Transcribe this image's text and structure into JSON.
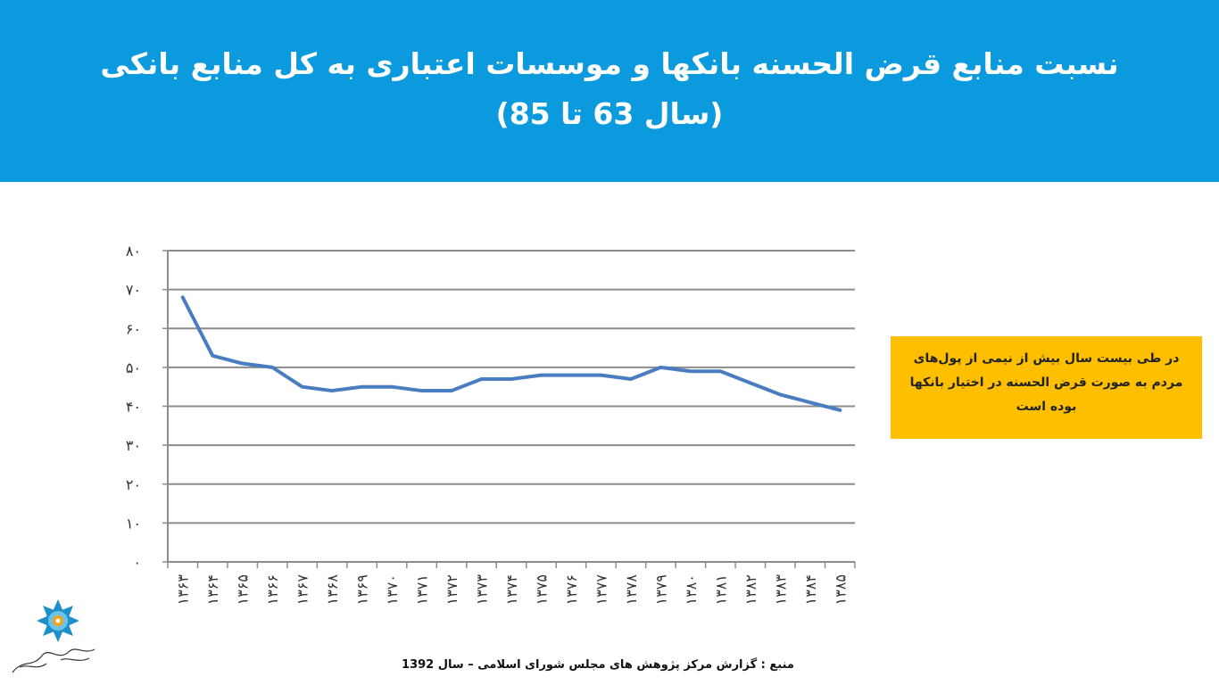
{
  "slide": {
    "title_line1": "نسبت منابع قرض الحسنه بانکها و موسسات اعتباری به کل منابع بانکی",
    "title_line2": "(سال 63 تا 85)",
    "note": "در طی بیست سال بیش از نیمی از پول‌های مردم به صورت قرض الحسنه در اختیار بانکها بوده است",
    "source": "منبع : گزارش مرکز پژوهش های مجلس شورای اسلامی – سال 1392",
    "colors": {
      "header": "#0b9ade",
      "note_bg": "#fdbf00",
      "line": "#4a7cc2",
      "grid": "#8c8c8c"
    },
    "logo_icon": "institute-logo-icon"
  },
  "chart_data": {
    "type": "line",
    "title": "",
    "xlabel": "",
    "ylabel": "",
    "categories": [
      "۱۳۶۳",
      "۱۳۶۴",
      "۱۳۶۵",
      "۱۳۶۶",
      "۱۳۶۷",
      "۱۳۶۸",
      "۱۳۶۹",
      "۱۳۷۰",
      "۱۳۷۱",
      "۱۳۷۲",
      "۱۳۷۳",
      "۱۳۷۴",
      "۱۳۷۵",
      "۱۳۷۶",
      "۱۳۷۷",
      "۱۳۷۸",
      "۱۳۷۹",
      "۱۳۸۰",
      "۱۳۸۱",
      "۱۳۸۲",
      "۱۳۸۳",
      "۱۳۸۴",
      "۱۳۸۵"
    ],
    "values": [
      68,
      53,
      51,
      50,
      45,
      44,
      45,
      45,
      44,
      44,
      47,
      47,
      48,
      48,
      48,
      47,
      50,
      49,
      49,
      46,
      43,
      41,
      39
    ],
    "ylim": [
      0,
      80
    ],
    "yticks": [
      0,
      10,
      20,
      30,
      40,
      50,
      60,
      70,
      80
    ],
    "ytick_labels": [
      "۰",
      "۱۰",
      "۲۰",
      "۳۰",
      "۴۰",
      "۵۰",
      "۶۰",
      "۷۰",
      "۸۰"
    ],
    "grid": true,
    "legend": "none"
  }
}
